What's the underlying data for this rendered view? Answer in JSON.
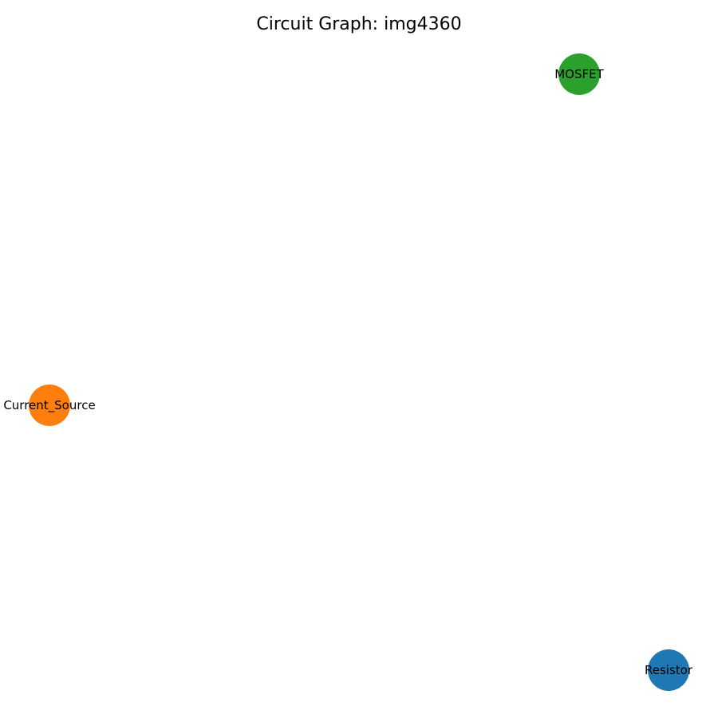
{
  "title": "Circuit Graph: img4360",
  "nodes": [
    {
      "id": "mosfet",
      "label": "MOSFET",
      "color": "#2ca02c"
    },
    {
      "id": "current_source",
      "label": "Current_Source",
      "color": "#ff7f0e"
    },
    {
      "id": "resistor",
      "label": "Resistor",
      "color": "#1f77b4"
    }
  ],
  "edges": []
}
